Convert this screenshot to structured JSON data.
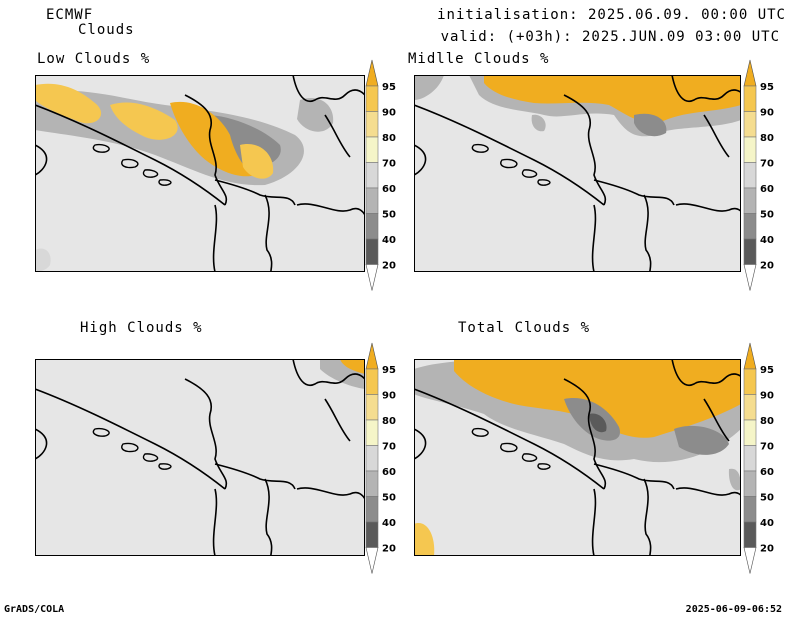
{
  "header": {
    "model": "ECMWF",
    "product": "Clouds",
    "init": "initialisation: 2025.06.09. 00:00 UTC",
    "valid": "valid: (+03h): 2025.JUN.09 03:00 UTC"
  },
  "panels": [
    {
      "title": "Low Clouds %"
    },
    {
      "title": "Midlle Clouds %"
    },
    {
      "title": "High Clouds %"
    },
    {
      "title": "Total Clouds %"
    }
  ],
  "legend": {
    "levels": [
      "95",
      "90",
      "80",
      "70",
      "60",
      "50",
      "40",
      "20"
    ],
    "colors": [
      "#f0ad20",
      "#f5c750",
      "#f5dd90",
      "#f5f5c8",
      "#d8d8d8",
      "#b4b4b4",
      "#8c8c8c",
      "#5a5a5a",
      "#ffffff"
    ],
    "background_color": "#e6e6e6"
  },
  "footer": {
    "left": "GrADS/COLA",
    "right": "2025-06-09-06:52"
  }
}
